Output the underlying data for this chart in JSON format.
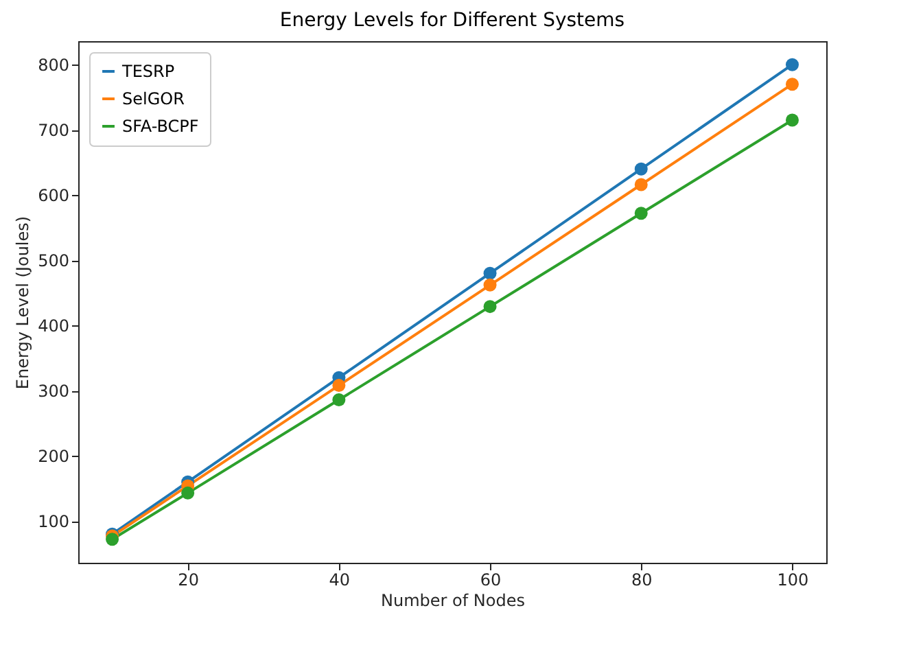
{
  "chart_data": {
    "type": "line",
    "title": "Energy Levels for Different Systems",
    "xlabel": "Number of Nodes",
    "ylabel": "Energy Level (Joules)",
    "x": [
      10,
      20,
      40,
      60,
      80,
      100
    ],
    "series": [
      {
        "name": "TESRP",
        "color": "#1f77b4",
        "values": [
          80,
          160,
          320,
          480,
          640,
          800
        ]
      },
      {
        "name": "SelGOR",
        "color": "#ff7f0e",
        "values": [
          77,
          154,
          308,
          462,
          616,
          770
        ]
      },
      {
        "name": "SFA-BCPF",
        "color": "#2ca02c",
        "values": [
          72,
          143,
          286,
          429,
          572,
          715
        ]
      }
    ],
    "xlim": [
      5.5,
      104.5
    ],
    "xticks": [
      20,
      40,
      60,
      80,
      100
    ],
    "ylim": [
      36,
      836
    ],
    "yticks": [
      100,
      200,
      300,
      400,
      500,
      600,
      700,
      800
    ],
    "grid": false,
    "legend": "top left",
    "marker": "circle",
    "line_style": "solid"
  }
}
